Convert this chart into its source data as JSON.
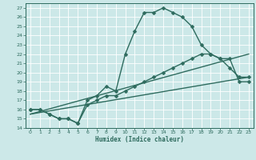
{
  "xlabel": "Humidex (Indice chaleur)",
  "bg_color": "#cce8e8",
  "grid_color": "#ffffff",
  "line_color": "#2e6b5e",
  "xlim": [
    -0.5,
    23.5
  ],
  "ylim": [
    14,
    27.5
  ],
  "xticks": [
    0,
    1,
    2,
    3,
    4,
    5,
    6,
    7,
    8,
    9,
    10,
    11,
    12,
    13,
    14,
    15,
    16,
    17,
    18,
    19,
    20,
    21,
    22,
    23
  ],
  "yticks": [
    14,
    15,
    16,
    17,
    18,
    19,
    20,
    21,
    22,
    23,
    24,
    25,
    26,
    27
  ],
  "line1_x": [
    0,
    1,
    2,
    3,
    4,
    5,
    6,
    7,
    8,
    9,
    10,
    11,
    12,
    13,
    14,
    15,
    16,
    17,
    18,
    19,
    20,
    21,
    22,
    23
  ],
  "line1_y": [
    16,
    16,
    15.5,
    15,
    15,
    14.5,
    17,
    17.5,
    18.5,
    18,
    22,
    24.5,
    26.5,
    26.5,
    27,
    26.5,
    26,
    25,
    23,
    22,
    21.5,
    20.5,
    19.5,
    19.5
  ],
  "line2_x": [
    0,
    1,
    2,
    3,
    4,
    5,
    6,
    7,
    8,
    9,
    10,
    11,
    12,
    13,
    14,
    15,
    16,
    17,
    18,
    19,
    20,
    21,
    22,
    23
  ],
  "line2_y": [
    16,
    16,
    15.5,
    15,
    15,
    14.5,
    16.5,
    17,
    17.5,
    17.5,
    18,
    18.5,
    19,
    19.5,
    20,
    20.5,
    21,
    21.5,
    22,
    22,
    21.5,
    21.5,
    19,
    19
  ],
  "line3_x": [
    0,
    23
  ],
  "line3_y": [
    15.5,
    19.5
  ],
  "line4_x": [
    0,
    23
  ],
  "line4_y": [
    15.5,
    22
  ],
  "marker": "D",
  "markersize": 2.5,
  "linewidth": 1.0
}
